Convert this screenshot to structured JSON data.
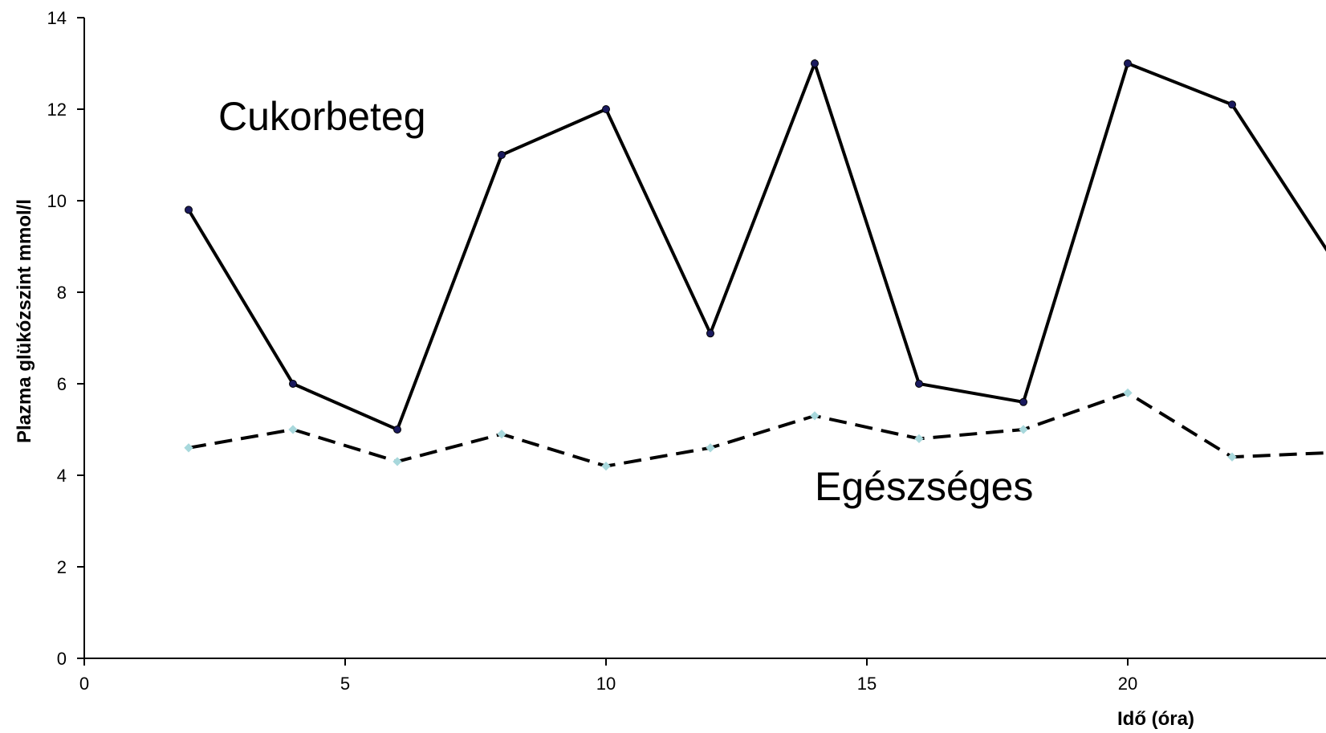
{
  "chart_data": {
    "type": "line",
    "title": "",
    "xlabel": "Idő (óra)",
    "ylabel": "Plazma glükózszint mmol/l",
    "xlim": [
      0,
      25
    ],
    "ylim": [
      0,
      14
    ],
    "xticks": [
      0,
      5,
      10,
      15,
      20
    ],
    "yticks": [
      0,
      2,
      4,
      6,
      8,
      10,
      12,
      14
    ],
    "grid": false,
    "legend": "none",
    "series": [
      {
        "name": "Cukorbeteg",
        "style": "solid",
        "marker_color": "#1a1a5e",
        "line_color": "#000000",
        "x": [
          2,
          4,
          6,
          8,
          10,
          12,
          14,
          16,
          18,
          20,
          22,
          24
        ],
        "y": [
          9.8,
          6.0,
          5.0,
          11.0,
          12.0,
          7.1,
          13.0,
          6.0,
          5.6,
          13.0,
          12.1,
          8.6
        ]
      },
      {
        "name": "Egészséges",
        "style": "dashed",
        "marker_color": "#a8d8dc",
        "line_color": "#000000",
        "x": [
          2,
          4,
          6,
          8,
          10,
          12,
          14,
          16,
          18,
          20,
          22,
          24
        ],
        "y": [
          4.6,
          5.0,
          4.3,
          4.9,
          4.2,
          4.6,
          5.3,
          4.8,
          5.0,
          5.8,
          4.4,
          4.5
        ]
      }
    ]
  }
}
